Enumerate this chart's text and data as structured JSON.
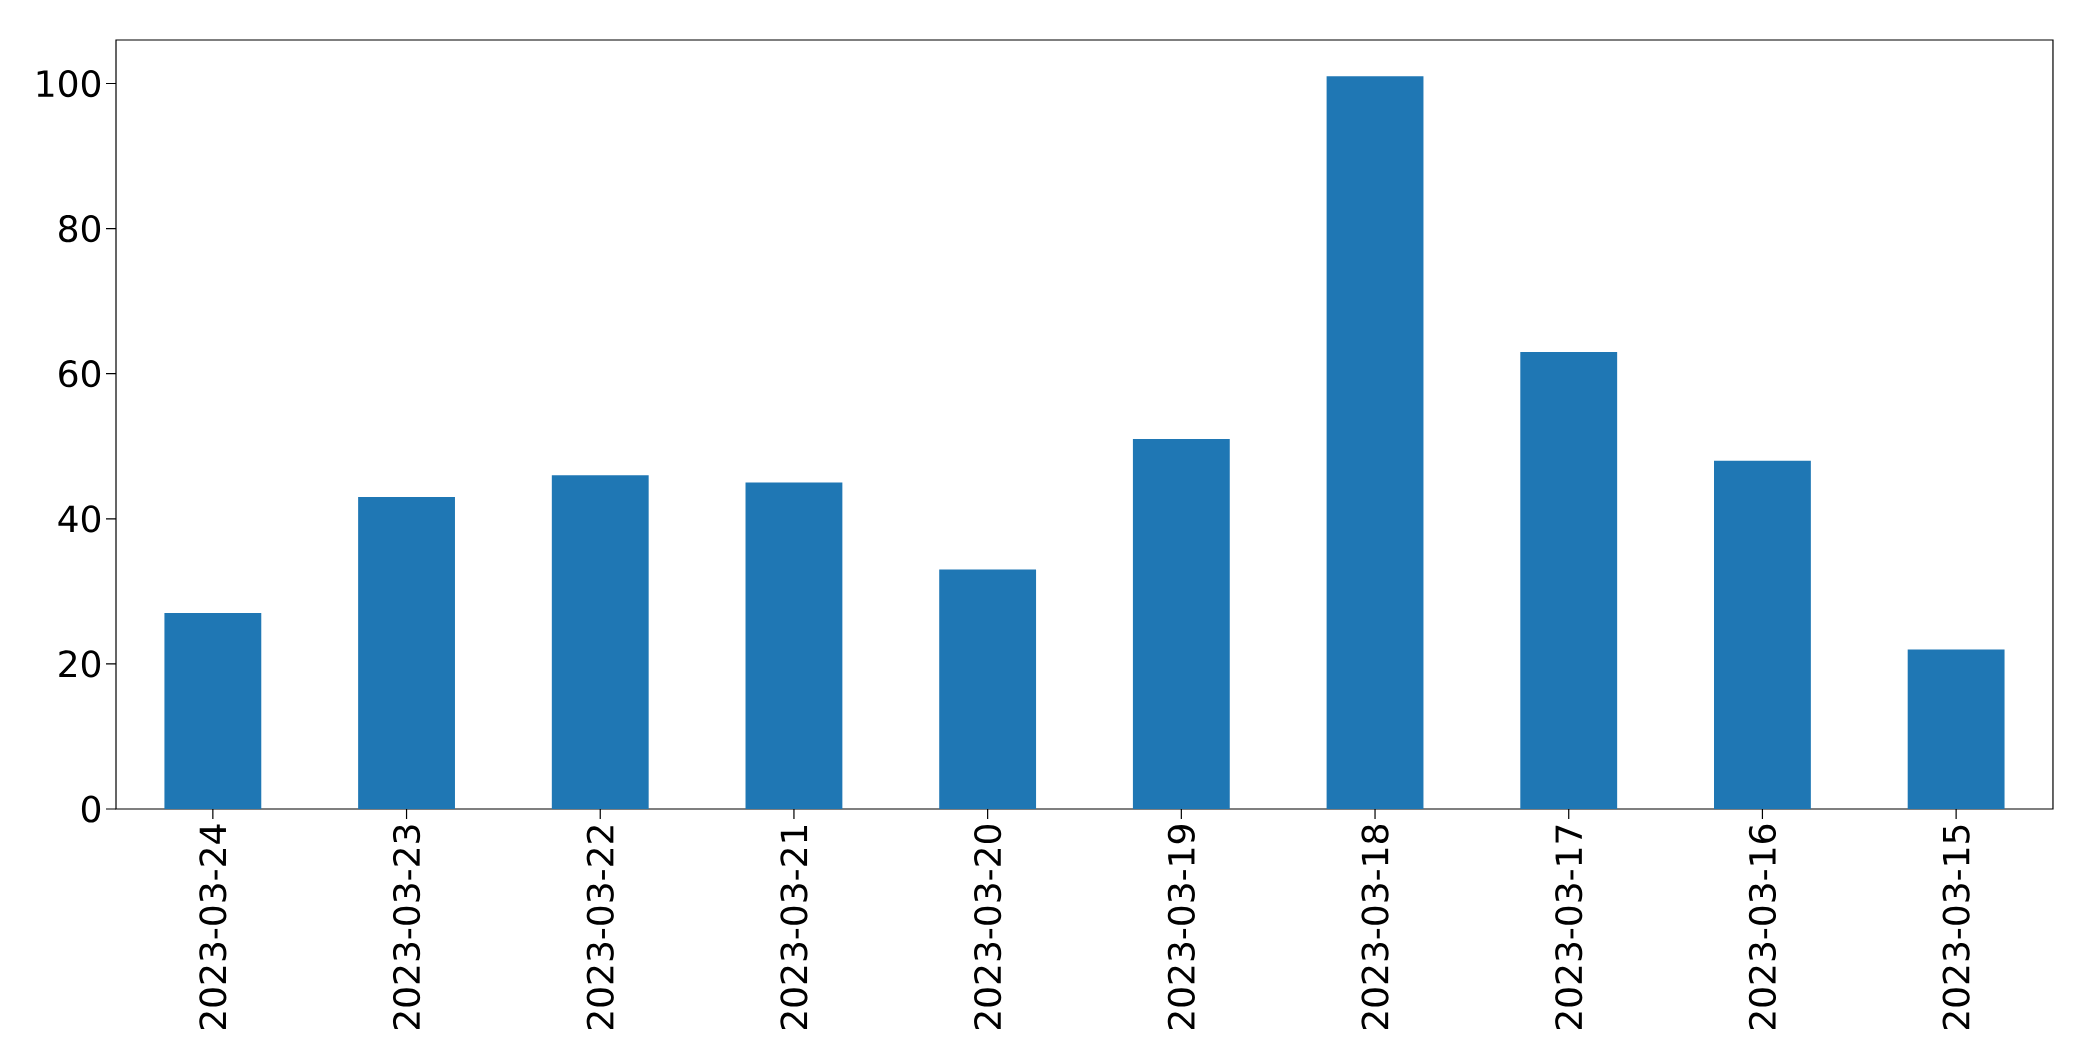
{
  "chart_data": {
    "type": "bar",
    "categories": [
      "2023-03-24",
      "2023-03-23",
      "2023-03-22",
      "2023-03-21",
      "2023-03-20",
      "2023-03-19",
      "2023-03-18",
      "2023-03-17",
      "2023-03-16",
      "2023-03-15"
    ],
    "values": [
      27,
      43,
      46,
      45,
      33,
      51,
      101,
      63,
      48,
      22
    ],
    "color": "#1f77b4",
    "ylim": [
      0,
      106
    ],
    "yticks": [
      0,
      20,
      40,
      60,
      80,
      100
    ]
  }
}
